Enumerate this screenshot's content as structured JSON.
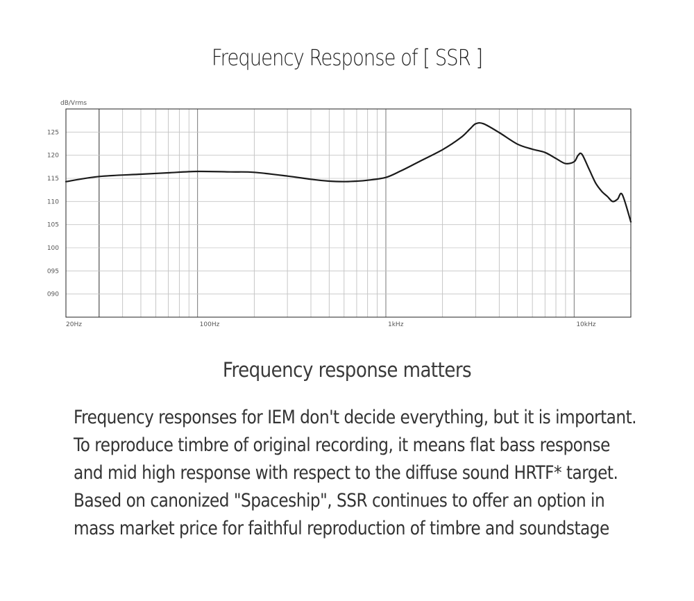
{
  "page": {
    "title": "Frequency Response of [ SSR ]",
    "subtitle": "Frequency response matters",
    "paragraph": [
      "Frequency responses for IEM don't decide everything, but it is important.",
      "To reproduce timbre of original recording, it means flat bass response",
      "and mid high response with respect to the diffuse sound HRTF* target.",
      "Based on canonized \"Spaceship\", SSR continues to offer an option in",
      "mass market price for faithful reproduction of timbre and soundstage"
    ]
  },
  "chart_data": {
    "type": "line",
    "title": "Frequency Response of [ SSR ]",
    "ylabel": "dB/Vrms",
    "xscale": "log",
    "xlim": [
      20,
      20000
    ],
    "ylim": [
      85,
      130
    ],
    "grid": true,
    "line_color": "#1a1a1a",
    "y_ticks": [
      {
        "value": 125,
        "label": "125"
      },
      {
        "value": 120,
        "label": "120"
      },
      {
        "value": 115,
        "label": "115"
      },
      {
        "value": 110,
        "label": "110"
      },
      {
        "value": 105,
        "label": "105"
      },
      {
        "value": 100,
        "label": "100"
      },
      {
        "value": 95,
        "label": "095"
      },
      {
        "value": 90,
        "label": "090"
      }
    ],
    "x_ticks": [
      {
        "value": 20,
        "label": "20Hz"
      },
      {
        "value": 100,
        "label": "100Hz"
      },
      {
        "value": 1000,
        "label": "1kHz"
      },
      {
        "value": 10000,
        "label": "10kHz"
      }
    ],
    "series": [
      {
        "x": [
          20,
          30,
          50,
          70,
          100,
          150,
          200,
          300,
          400,
          500,
          600,
          700,
          800,
          1000,
          1200,
          1500,
          2000,
          2500,
          2800,
          3000,
          3300,
          4000,
          5000,
          6000,
          7000,
          8000,
          9000,
          10000,
          10500,
          11000,
          12000,
          13000,
          14000,
          15000,
          16000,
          17000,
          18000,
          20000
        ],
        "y": [
          114.3,
          115.4,
          115.9,
          116.2,
          116.5,
          116.4,
          116.3,
          115.5,
          114.8,
          114.4,
          114.3,
          114.4,
          114.6,
          115.2,
          116.6,
          118.6,
          121.2,
          123.8,
          125.7,
          126.8,
          126.8,
          124.9,
          122.4,
          121.3,
          120.6,
          119.3,
          118.2,
          118.6,
          120.0,
          120.2,
          117.0,
          114.0,
          112.2,
          111.1,
          110.0,
          110.5,
          111.5,
          105.6
        ]
      }
    ]
  }
}
